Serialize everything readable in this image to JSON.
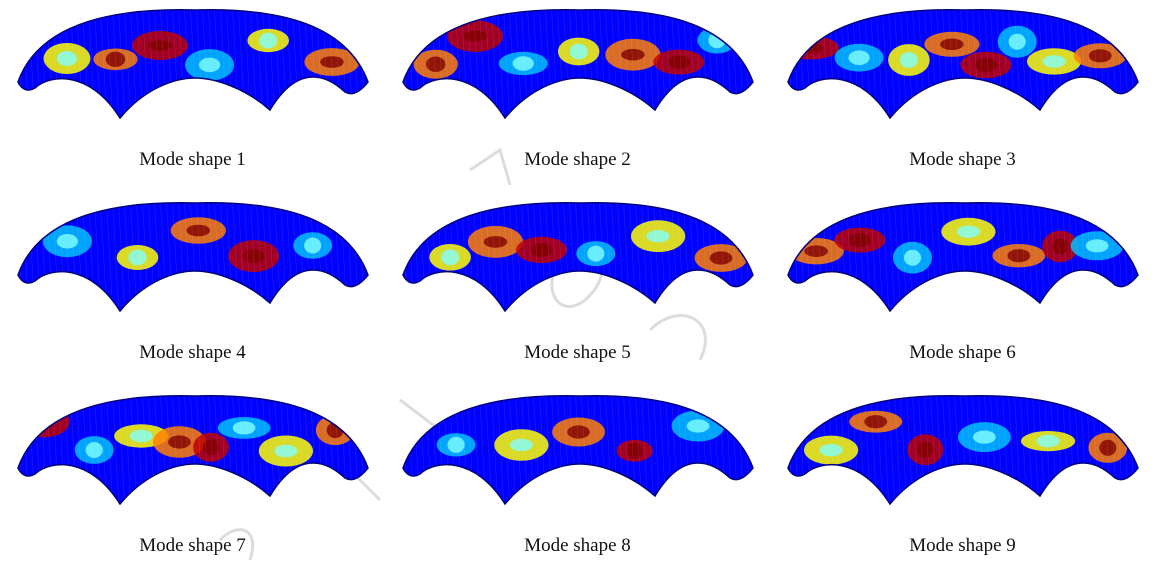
{
  "figure": {
    "panels": [
      {
        "caption": "Mode shape 1",
        "mode": 1,
        "variant": "a"
      },
      {
        "caption": "Mode shape 2",
        "mode": 2,
        "variant": "b"
      },
      {
        "caption": "Mode shape 3",
        "mode": 3,
        "variant": "c"
      },
      {
        "caption": "Mode shape 4",
        "mode": 4,
        "variant": "d"
      },
      {
        "caption": "Mode shape 5",
        "mode": 5,
        "variant": "e"
      },
      {
        "caption": "Mode shape 6",
        "mode": 6,
        "variant": "f"
      },
      {
        "caption": "Mode shape 7",
        "mode": 7,
        "variant": "g"
      },
      {
        "caption": "Mode shape 8",
        "mode": 8,
        "variant": "h"
      },
      {
        "caption": "Mode shape 9",
        "mode": 9,
        "variant": "i"
      }
    ],
    "colormap": [
      "#00007f",
      "#0000ff",
      "#00bfff",
      "#7fffff",
      "#ffff00",
      "#ff7f00",
      "#bf0000",
      "#7f0000"
    ],
    "watermark_color": "#dcdcdc"
  }
}
